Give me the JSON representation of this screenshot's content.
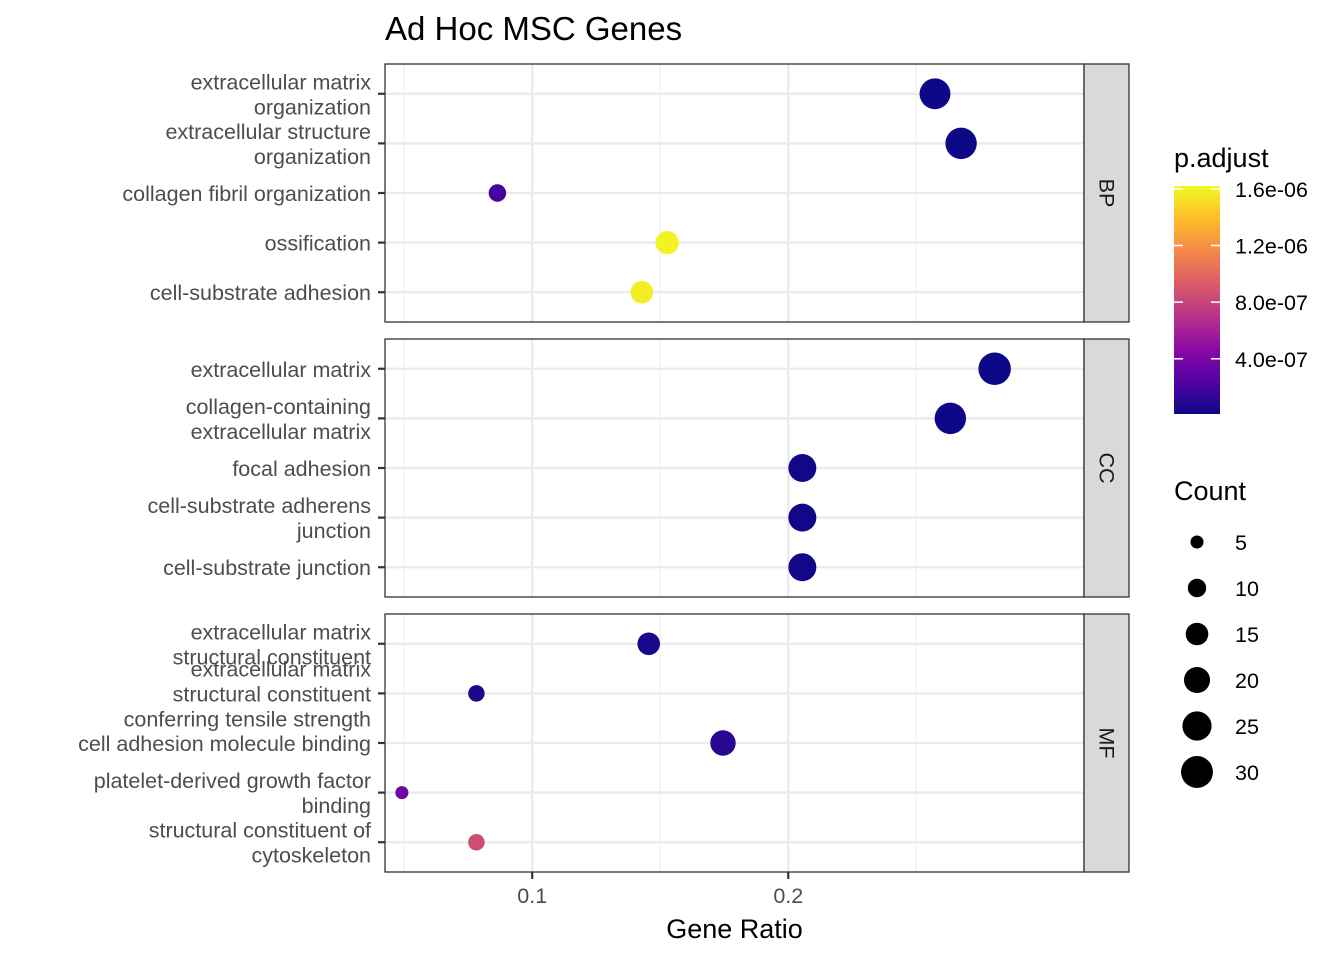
{
  "chart_data": {
    "type": "scatter",
    "title": "Ad Hoc MSC Genes",
    "xlabel": "Gene Ratio",
    "ylabel": "",
    "xlim": [
      0.0425,
      0.3155
    ],
    "x_ticks": [
      {
        "value": 0.1,
        "label": "0.1"
      },
      {
        "value": 0.2,
        "label": "0.2"
      }
    ],
    "x_minor_gridlines": [
      0.05,
      0.15,
      0.25
    ],
    "grid": true,
    "color_encoding": "p.adjust",
    "size_encoding": "Count",
    "facets": [
      {
        "name": "BP",
        "points": [
          {
            "label": [
              "extracellular matrix",
              "organization"
            ],
            "x": 0.2573,
            "count": 28,
            "p_adjust": 1e-08
          },
          {
            "label": [
              "extracellular structure",
              "organization"
            ],
            "x": 0.2675,
            "count": 29,
            "p_adjust": 1e-08
          },
          {
            "label": [
              "collagen fibril organization"
            ],
            "x": 0.0864,
            "count": 9,
            "p_adjust": 2e-07
          },
          {
            "label": [
              "ossification"
            ],
            "x": 0.1527,
            "count": 16,
            "p_adjust": 1.6e-06
          },
          {
            "label": [
              "cell-substrate adhesion"
            ],
            "x": 0.1428,
            "count": 15,
            "p_adjust": 1.58e-06
          }
        ]
      },
      {
        "name": "CC",
        "points": [
          {
            "label": [
              "extracellular matrix"
            ],
            "x": 0.2806,
            "count": 31,
            "p_adjust": 1e-08
          },
          {
            "label": [
              "collagen-containing",
              "extracellular matrix"
            ],
            "x": 0.2633,
            "count": 29,
            "p_adjust": 1e-08
          },
          {
            "label": [
              "focal adhesion"
            ],
            "x": 0.2055,
            "count": 23,
            "p_adjust": 3e-08
          },
          {
            "label": [
              "cell-substrate adherens",
              "junction"
            ],
            "x": 0.2055,
            "count": 23,
            "p_adjust": 3e-08
          },
          {
            "label": [
              "cell-substrate junction"
            ],
            "x": 0.2055,
            "count": 23,
            "p_adjust": 3e-08
          }
        ]
      },
      {
        "name": "MF",
        "points": [
          {
            "label": [
              "extracellular matrix",
              "structural constituent"
            ],
            "x": 0.1455,
            "count": 15,
            "p_adjust": 5e-08
          },
          {
            "label": [
              "extracellular matrix",
              "structural constituent",
              "conferring tensile strength"
            ],
            "x": 0.0782,
            "count": 8,
            "p_adjust": 6e-08
          },
          {
            "label": [
              "cell adhesion molecule binding"
            ],
            "x": 0.1745,
            "count": 19,
            "p_adjust": 1e-07
          },
          {
            "label": [
              "platelet-derived growth factor",
              "binding"
            ],
            "x": 0.0491,
            "count": 5,
            "p_adjust": 3.5e-07
          },
          {
            "label": [
              "structural constituent of",
              "cytoskeleton"
            ],
            "x": 0.0782,
            "count": 8,
            "p_adjust": 8.5e-07
          }
        ]
      }
    ],
    "legend": {
      "placement": "right",
      "colorbar": {
        "title": "p.adjust",
        "min": 1e-08,
        "max": 1.62e-06,
        "ticks": [
          {
            "value": 4e-07,
            "label": "4.0e-07"
          },
          {
            "value": 8e-07,
            "label": "8.0e-07"
          },
          {
            "value": 1.2e-06,
            "label": "1.2e-06"
          },
          {
            "value": 1.6e-06,
            "label": "1.6e-06"
          }
        ],
        "colors": [
          "#0D0887",
          "#5302A3",
          "#8B0AA5",
          "#B83289",
          "#DB5C68",
          "#F48849",
          "#FEBC2A",
          "#F0F921"
        ]
      },
      "size": {
        "title": "Count",
        "entries": [
          {
            "value": 5,
            "label": "5"
          },
          {
            "value": 10,
            "label": "10"
          },
          {
            "value": 15,
            "label": "15"
          },
          {
            "value": 20,
            "label": "20"
          },
          {
            "value": 25,
            "label": "25"
          },
          {
            "value": 30,
            "label": "30"
          }
        ]
      }
    }
  }
}
